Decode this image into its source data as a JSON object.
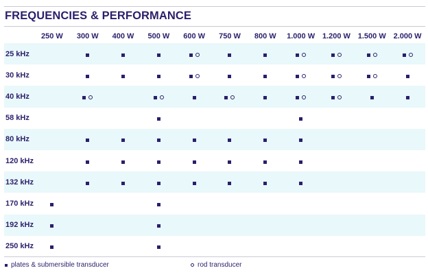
{
  "title": "FREQUENCIES & PERFORMANCE",
  "powers": [
    "250 W",
    "300 W",
    "400 W",
    "500 W",
    "600 W",
    "750 W",
    "800 W",
    "1.000 W",
    "1.200 W",
    "1.500 W",
    "2.000 W"
  ],
  "rows": [
    {
      "freq": "25 kHz",
      "cells": [
        "",
        "P",
        "P",
        "P",
        "PR",
        "P",
        "P",
        "PR",
        "PR",
        "PR",
        "PR"
      ]
    },
    {
      "freq": "30 kHz",
      "cells": [
        "",
        "P",
        "P",
        "P",
        "PR",
        "P",
        "P",
        "PR",
        "PR",
        "PR",
        "P"
      ]
    },
    {
      "freq": "40 kHz",
      "cells": [
        "",
        "PR",
        "",
        "PR",
        "P",
        "PR",
        "P",
        "PR",
        "PR",
        "P",
        "P"
      ]
    },
    {
      "freq": "58 kHz",
      "cells": [
        "",
        "",
        "",
        "P",
        "",
        "",
        "",
        "P",
        "",
        "",
        ""
      ]
    },
    {
      "freq": "80 kHz",
      "cells": [
        "",
        "P",
        "P",
        "P",
        "P",
        "P",
        "P",
        "P",
        "",
        "",
        ""
      ]
    },
    {
      "freq": "120 kHz",
      "cells": [
        "",
        "P",
        "P",
        "P",
        "P",
        "P",
        "P",
        "P",
        "",
        "",
        ""
      ]
    },
    {
      "freq": "132 kHz",
      "cells": [
        "",
        "P",
        "P",
        "P",
        "P",
        "P",
        "P",
        "P",
        "",
        "",
        ""
      ]
    },
    {
      "freq": "170 kHz",
      "cells": [
        "P",
        "",
        "",
        "P",
        "",
        "",
        "",
        "",
        "",
        "",
        ""
      ]
    },
    {
      "freq": "192 kHz",
      "cells": [
        "P",
        "",
        "",
        "P",
        "",
        "",
        "",
        "",
        "",
        "",
        ""
      ]
    },
    {
      "freq": "250 kHz",
      "cells": [
        "P",
        "",
        "",
        "P",
        "",
        "",
        "",
        "",
        "",
        "",
        ""
      ]
    }
  ],
  "legend": {
    "plates": "plates & submersible transducer",
    "rod": "rod transducer"
  },
  "colors": {
    "ink": "#2a1f6b",
    "band": "#e9f8fa",
    "rule": "#c9c9d6"
  },
  "icons": {
    "P": "filled-square-icon",
    "R": "ring-icon"
  }
}
